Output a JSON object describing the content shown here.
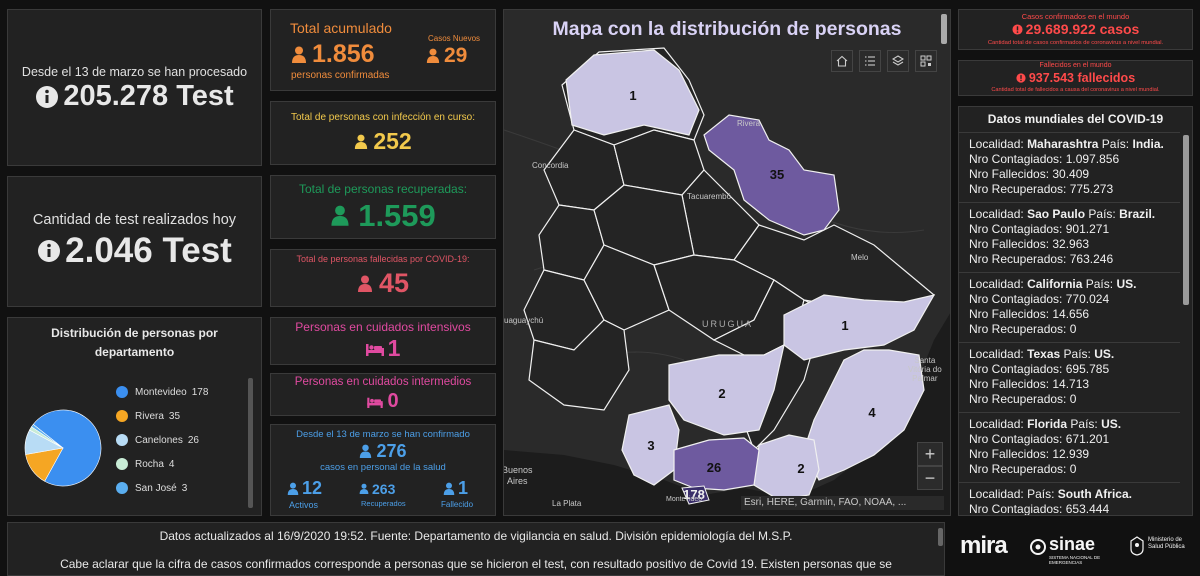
{
  "colors": {
    "orange": "#f08c3c",
    "yellow": "#f2c94c",
    "green": "#1e9a5a",
    "red": "#e05565",
    "pink": "#e04aa0",
    "blue": "#4c9fe8",
    "world_red": "#ff4a4a"
  },
  "tests_total": {
    "caption": "Desde el 13 de marzo se han procesado",
    "value": "205.278 Test"
  },
  "tests_today": {
    "caption": "Cantidad de test realizados hoy",
    "value": "2.046 Test"
  },
  "distribution": {
    "title": "Distribución de personas por departamento",
    "items": [
      {
        "label": "Montevideo",
        "value": "178",
        "color": "#3b8ff0"
      },
      {
        "label": "Rivera",
        "value": "35",
        "color": "#f5a623"
      },
      {
        "label": "Canelones",
        "value": "26",
        "color": "#b8dcf5"
      },
      {
        "label": "Rocha",
        "value": "4",
        "color": "#c8ecd6"
      },
      {
        "label": "San José",
        "value": "3",
        "color": "#5aaef0"
      }
    ]
  },
  "total_acumulado": {
    "label": "Total acumulado",
    "value": "1.856",
    "sub": "personas confirmadas",
    "new_label": "Casos Nuevos",
    "new_value": "29"
  },
  "en_curso": {
    "label": "Total de personas con infección en curso:",
    "value": "252"
  },
  "recuperadas": {
    "label": "Total de personas recuperadas:",
    "value": "1.559"
  },
  "fallecidas": {
    "label": "Total de personas fallecidas por COVID-19:",
    "value": "45"
  },
  "intensivos": {
    "label": "Personas en cuidados intensivos",
    "value": "1"
  },
  "intermedios": {
    "label": "Personas en cuidados intermedios",
    "value": "0"
  },
  "salud": {
    "caption": "Desde el 13 de marzo se han confirmado",
    "value": "276",
    "sub": "casos en personal de la salud",
    "activos_value": "12",
    "activos_label": "Activos",
    "recuperados_value": "263",
    "recuperados_label": "Recuperados",
    "fallecido_value": "1",
    "fallecido_label": "Fallecido"
  },
  "map": {
    "title": "Mapa con la distribución de personas",
    "attribution": "Esri, HERE, Garmin, FAO, NOAA, ...",
    "zoom_in": "+",
    "zoom_out": "−",
    "places": {
      "rivera": "Rivera",
      "concordia": "Concordia",
      "tacuarembo": "Tacuarembó",
      "melo": "Melo",
      "uruguay": "URUGUA",
      "gualeguaychu": "uaguaychú",
      "santa_vitoria": "Santa\nVitória do\nPalmar",
      "buenos_aires": "Buenos\nAires",
      "la_plata": "La Plata",
      "montevideo": "Montevideo"
    },
    "counts": {
      "artigas": "1",
      "rivera": "35",
      "treinta_tres": "1",
      "florida": "2",
      "rocha": "4",
      "colonia": "3",
      "canelones": "26",
      "maldonado": "2",
      "montevideo": "178"
    }
  },
  "world_cases": {
    "title": "Casos confirmados en el mundo",
    "value": "29.689.922 casos",
    "sub": "Cantidad total de casos confirmados de coronavirus a nivel mundial."
  },
  "world_deaths": {
    "title": "Fallecidos en el mundo",
    "value": "937.543 fallecidos",
    "sub": "Cantidad total de fallecidos a causa del coronavirus a nivel mundial."
  },
  "world_data": {
    "title": "Datos mundiales del COVID-19",
    "localidad_label": "Localidad:",
    "pais_label": "País:",
    "contagiados_label": "Nro Contagiados:",
    "fallecidos_label": "Nro Fallecidos:",
    "recuperados_label": "Nro Recuperados:",
    "items": [
      {
        "localidad": "Maharashtra",
        "pais": "India.",
        "contagiados": "1.097.856",
        "fallecidos": "30.409",
        "recuperados": "775.273"
      },
      {
        "localidad": "Sao Paulo",
        "pais": "Brazil.",
        "contagiados": "901.271",
        "fallecidos": "32.963",
        "recuperados": "763.246"
      },
      {
        "localidad": "California",
        "pais": "US.",
        "contagiados": "770.024",
        "fallecidos": "14.656",
        "recuperados": "0"
      },
      {
        "localidad": "Texas",
        "pais": "US.",
        "contagiados": "695.785",
        "fallecidos": "14.713",
        "recuperados": "0"
      },
      {
        "localidad": "Florida",
        "pais": "US.",
        "contagiados": "671.201",
        "fallecidos": "12.939",
        "recuperados": "0"
      },
      {
        "localidad": "",
        "pais": "South Africa.",
        "contagiados": "653.444",
        "fallecidos": "",
        "recuperados": ""
      }
    ]
  },
  "footer": {
    "line1": "Datos actualizados al 16/9/2020 19:52. Fuente: Departamento de vigilancia en salud. División epidemiología del M.S.P.",
    "line2": "Cabe aclarar que la cifra de casos confirmados corresponde a personas que se hicieron el test, con resultado positivo de Covid 19. Existen personas que se"
  },
  "logos": {
    "mira": "mira",
    "sinae": "sinae",
    "sinae_sub": "SISTEMA NACIONAL DE EMERGENCIAS",
    "ministerio": "Ministerio de Salud Pública"
  }
}
